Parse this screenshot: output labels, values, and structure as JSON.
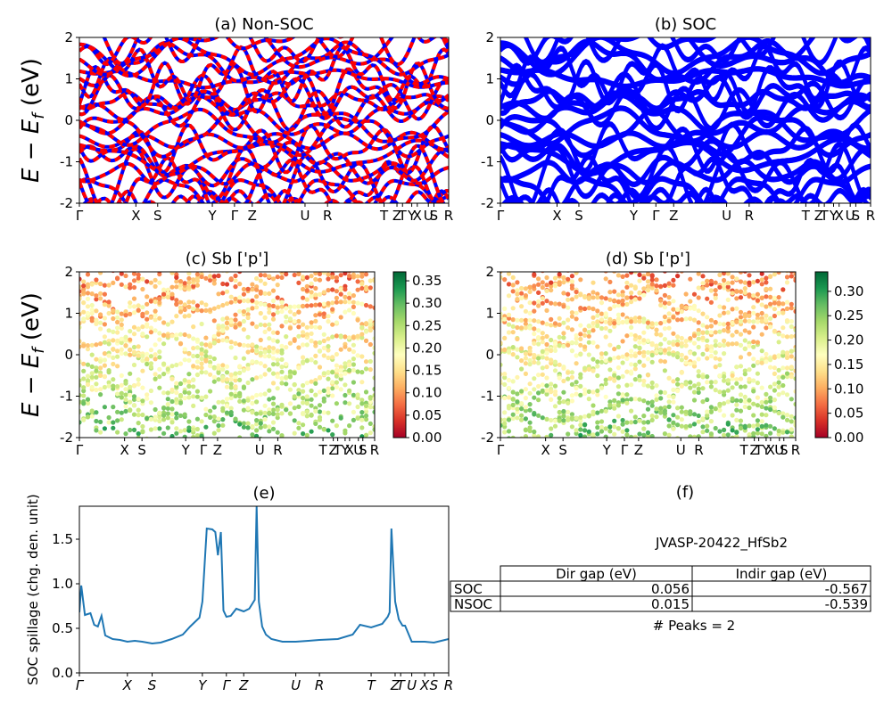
{
  "chart_data": [
    {
      "panel": "a",
      "type": "line",
      "title": "(a) Non-SOC",
      "ylabel": "E − E_f (eV)",
      "ylim": [
        -2,
        2
      ],
      "yticks": [
        -2,
        -1,
        0,
        1,
        2
      ],
      "kpath_labels": [
        "Γ",
        "X",
        "S",
        "Y",
        "Γ",
        "Z",
        "U",
        "R",
        "T",
        "Z",
        "T",
        "Y",
        "X",
        "U",
        "S",
        "R"
      ],
      "kpath_positions": [
        0,
        0.153,
        0.212,
        0.36,
        0.42,
        0.468,
        0.611,
        0.672,
        0.825,
        0.86,
        0.875,
        0.9,
        0.915,
        0.945,
        0.96,
        1.0
      ],
      "series": [
        {
          "values_description": "band energies",
          "color": "#ff0000"
        },
        {
          "values_description": "band energies",
          "color": "#0000ff"
        }
      ]
    },
    {
      "panel": "b",
      "type": "line",
      "title": "(b) SOC",
      "ylim": [
        -2,
        2
      ],
      "yticks": [
        -2,
        -1,
        0,
        1,
        2
      ],
      "kpath_labels": [
        "Γ",
        "X",
        "S",
        "Y",
        "Γ",
        "Z",
        "U",
        "R",
        "T",
        "Z",
        "T",
        "Y",
        "X",
        "U",
        "S",
        "R"
      ],
      "kpath_positions": [
        0,
        0.153,
        0.212,
        0.36,
        0.42,
        0.468,
        0.611,
        0.672,
        0.825,
        0.86,
        0.875,
        0.9,
        0.915,
        0.945,
        0.96,
        1.0
      ],
      "series": [
        {
          "color": "#0000ff"
        }
      ]
    },
    {
      "panel": "c",
      "type": "scatter",
      "title": "(c)  Sb ['p']",
      "ylabel": "E − E_f (eV)",
      "ylim": [
        -2,
        2
      ],
      "yticks": [
        -2,
        -1,
        0,
        1,
        2
      ],
      "colorbar_ticks": [
        0.0,
        0.05,
        0.1,
        0.15,
        0.2,
        0.25,
        0.3,
        0.35
      ],
      "colorbar_range": [
        0,
        0.37
      ],
      "colormap": "RdYlGn",
      "kpath_labels": [
        "Γ",
        "X",
        "S",
        "Y",
        "Γ",
        "Z",
        "U",
        "R",
        "T",
        "Z",
        "T",
        "Y",
        "X",
        "U",
        "S",
        "R"
      ],
      "kpath_positions": [
        0,
        0.153,
        0.212,
        0.36,
        0.42,
        0.468,
        0.611,
        0.672,
        0.825,
        0.86,
        0.875,
        0.9,
        0.915,
        0.945,
        0.96,
        1.0
      ]
    },
    {
      "panel": "d",
      "type": "scatter",
      "title": "(d) Sb ['p']",
      "ylim": [
        -2,
        2
      ],
      "yticks": [
        -2,
        -1,
        0,
        1,
        2
      ],
      "colorbar_ticks": [
        0.0,
        0.05,
        0.1,
        0.15,
        0.2,
        0.25,
        0.3
      ],
      "colorbar_range": [
        0,
        0.34
      ],
      "colormap": "RdYlGn",
      "kpath_labels": [
        "Γ",
        "X",
        "S",
        "Y",
        "Γ",
        "Z",
        "U",
        "R",
        "T",
        "Z",
        "T",
        "Y",
        "X",
        "U",
        "S",
        "R"
      ],
      "kpath_positions": [
        0,
        0.153,
        0.212,
        0.36,
        0.42,
        0.468,
        0.611,
        0.672,
        0.825,
        0.86,
        0.875,
        0.9,
        0.915,
        0.945,
        0.96,
        1.0
      ]
    },
    {
      "panel": "e",
      "type": "line",
      "title": "(e)",
      "ylabel": "SOC spillage (chg. den. unit)",
      "ylim": [
        0,
        1.87
      ],
      "yticks": [
        0.0,
        0.5,
        1.0,
        1.5
      ],
      "kpath_labels": [
        "Γ",
        "X",
        "S",
        "Y",
        "Γ",
        "Z",
        "U",
        "R",
        "T",
        "Z",
        "T",
        "U",
        "X",
        "S",
        "R"
      ],
      "kpath_positions": [
        0,
        0.13,
        0.197,
        0.333,
        0.398,
        0.445,
        0.586,
        0.65,
        0.79,
        0.855,
        0.87,
        0.9,
        0.935,
        0.96,
        1.0
      ],
      "x": [
        0,
        0.005,
        0.015,
        0.03,
        0.04,
        0.05,
        0.06,
        0.07,
        0.09,
        0.11,
        0.13,
        0.15,
        0.17,
        0.197,
        0.22,
        0.25,
        0.28,
        0.3,
        0.315,
        0.325,
        0.333,
        0.345,
        0.36,
        0.368,
        0.375,
        0.383,
        0.39,
        0.398,
        0.41,
        0.425,
        0.445,
        0.46,
        0.475,
        0.48,
        0.486,
        0.495,
        0.505,
        0.52,
        0.55,
        0.586,
        0.62,
        0.65,
        0.7,
        0.74,
        0.76,
        0.79,
        0.82,
        0.835,
        0.84,
        0.845,
        0.855,
        0.865,
        0.875,
        0.882,
        0.9,
        0.935,
        0.96,
        0.98,
        1.0
      ],
      "values": [
        0.68,
        0.98,
        0.65,
        0.67,
        0.54,
        0.52,
        0.64,
        0.42,
        0.38,
        0.37,
        0.35,
        0.36,
        0.35,
        0.33,
        0.34,
        0.38,
        0.43,
        0.52,
        0.58,
        0.62,
        0.8,
        1.62,
        1.61,
        1.58,
        1.32,
        1.58,
        0.7,
        0.63,
        0.64,
        0.72,
        0.69,
        0.72,
        0.82,
        1.87,
        0.8,
        0.52,
        0.43,
        0.38,
        0.35,
        0.35,
        0.36,
        0.37,
        0.38,
        0.43,
        0.54,
        0.51,
        0.55,
        0.63,
        0.68,
        1.62,
        0.8,
        0.6,
        0.53,
        0.53,
        0.35,
        0.35,
        0.34,
        0.36,
        0.38
      ],
      "color": "#1f77b4"
    }
  ],
  "panel_f": {
    "title": "(f)",
    "material": "JVASP-20422_HfSb2",
    "table": {
      "headers": [
        "",
        "Dir gap (eV)",
        "Indir gap (eV)"
      ],
      "rows": [
        [
          "SOC",
          "0.056",
          "-0.567"
        ],
        [
          "NSOC",
          "0.015",
          "-0.539"
        ]
      ]
    },
    "peaks": "# Peaks = 2"
  },
  "colors": {
    "nonsoc_red": "#ff0000",
    "band_blue": "#0000ff",
    "spillage_line": "#1f77b4"
  }
}
